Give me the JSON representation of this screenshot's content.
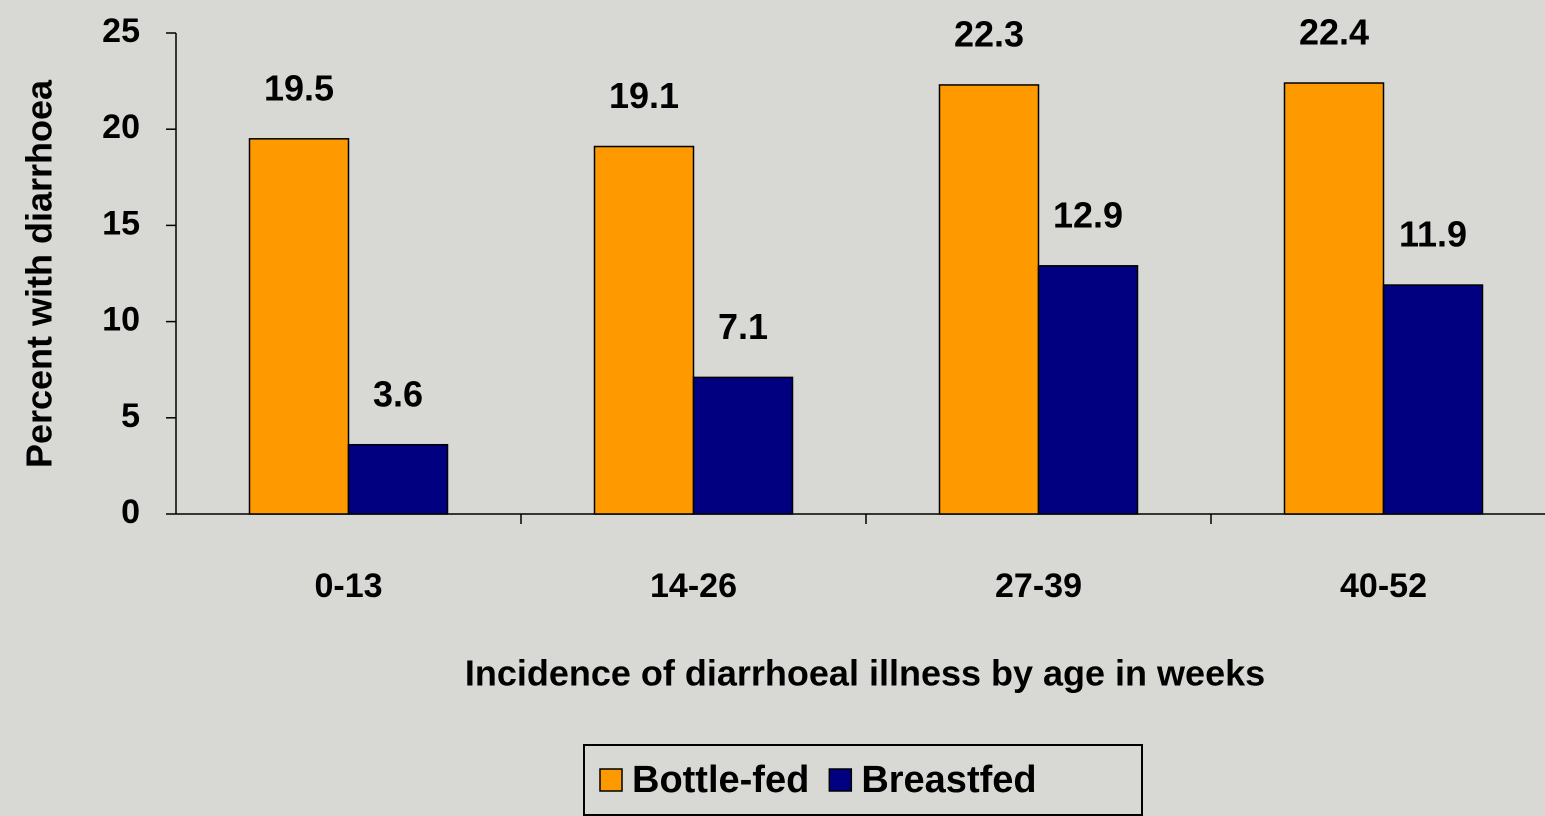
{
  "chart_data": {
    "type": "bar",
    "x_label": "Incidence of diarrhoeal illness by age in weeks",
    "y_label": "Percent with diarrhoea",
    "categories": [
      "0-13",
      "14-26",
      "27-39",
      "40-52"
    ],
    "series": [
      {
        "name": "Bottle-fed",
        "color": "#ff9900",
        "values": [
          19.5,
          19.1,
          22.3,
          22.4
        ]
      },
      {
        "name": "Breastfed",
        "color": "#000080",
        "values": [
          3.6,
          7.1,
          12.9,
          11.9
        ]
      }
    ],
    "ylim": [
      0,
      25
    ],
    "yticks": [
      0,
      5,
      10,
      15,
      20,
      25
    ],
    "legend": "bottom"
  }
}
